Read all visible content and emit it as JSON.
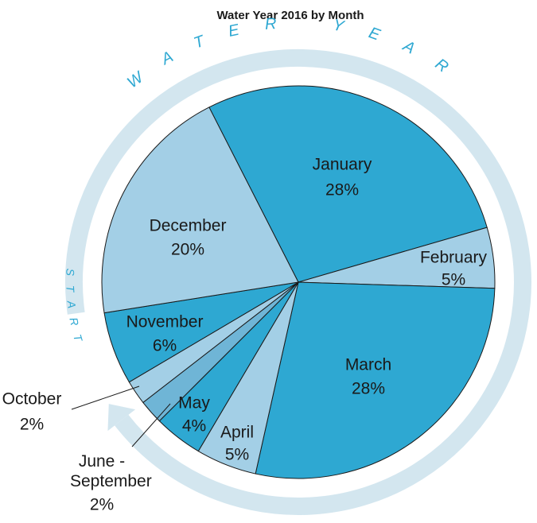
{
  "chart_data": {
    "type": "pie",
    "title": "Water Year 2016 by Month",
    "categories": [
      "January",
      "February",
      "March",
      "April",
      "May",
      "June - September",
      "October",
      "November",
      "December"
    ],
    "values": [
      28,
      5,
      28,
      5,
      4,
      2,
      2,
      6,
      20
    ],
    "value_labels": [
      "28%",
      "5%",
      "28%",
      "5%",
      "4%",
      "2%",
      "2%",
      "6%",
      "20%"
    ],
    "colors": [
      "#2ea8d2",
      "#a3cfe6",
      "#2ea8d2",
      "#a3cfe6",
      "#2ea8d2",
      "#6fb5d6",
      "#a3cfe6",
      "#2ea8d2",
      "#a3cfe6"
    ],
    "annotations": [
      "WATER YEAR",
      "START"
    ]
  }
}
